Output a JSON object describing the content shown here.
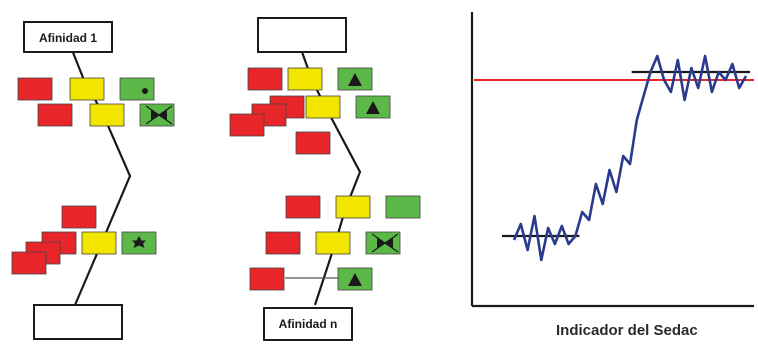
{
  "diagram": {
    "left_panel": {
      "top_label": "Afinidad 1"
    },
    "middle_panel": {
      "bottom_label": "Afinidad n"
    },
    "chart_caption": "Indicador del Sedac"
  },
  "colors": {
    "red": "#e8262a",
    "yellow": "#f2e600",
    "green": "#5cb848",
    "control_line": "#e8262a",
    "trace": "#2b3a8c",
    "ink": "#1a1a1a"
  },
  "icons": [
    "dot-icon",
    "bowtie-icon",
    "star-icon",
    "triangle-icon"
  ],
  "chart_data": {
    "type": "line",
    "title": "",
    "xlabel": "Indicador del Sedac",
    "ylabel": "",
    "series": [
      {
        "values": [
          20,
          28,
          15,
          32,
          10,
          26,
          18,
          27,
          18,
          22,
          34,
          30,
          48,
          38,
          55,
          44,
          62,
          58,
          80,
          92,
          104,
          112,
          100,
          94,
          110,
          90,
          106,
          96,
          112,
          94,
          104,
          100,
          108,
          96,
          102
        ]
      }
    ],
    "reference_line": 100,
    "baseline_segments": [
      {
        "from_index": 0,
        "to_index": 9,
        "value": 22
      },
      {
        "from_index": 19,
        "to_index": 34,
        "value": 104
      }
    ],
    "grid": false
  }
}
